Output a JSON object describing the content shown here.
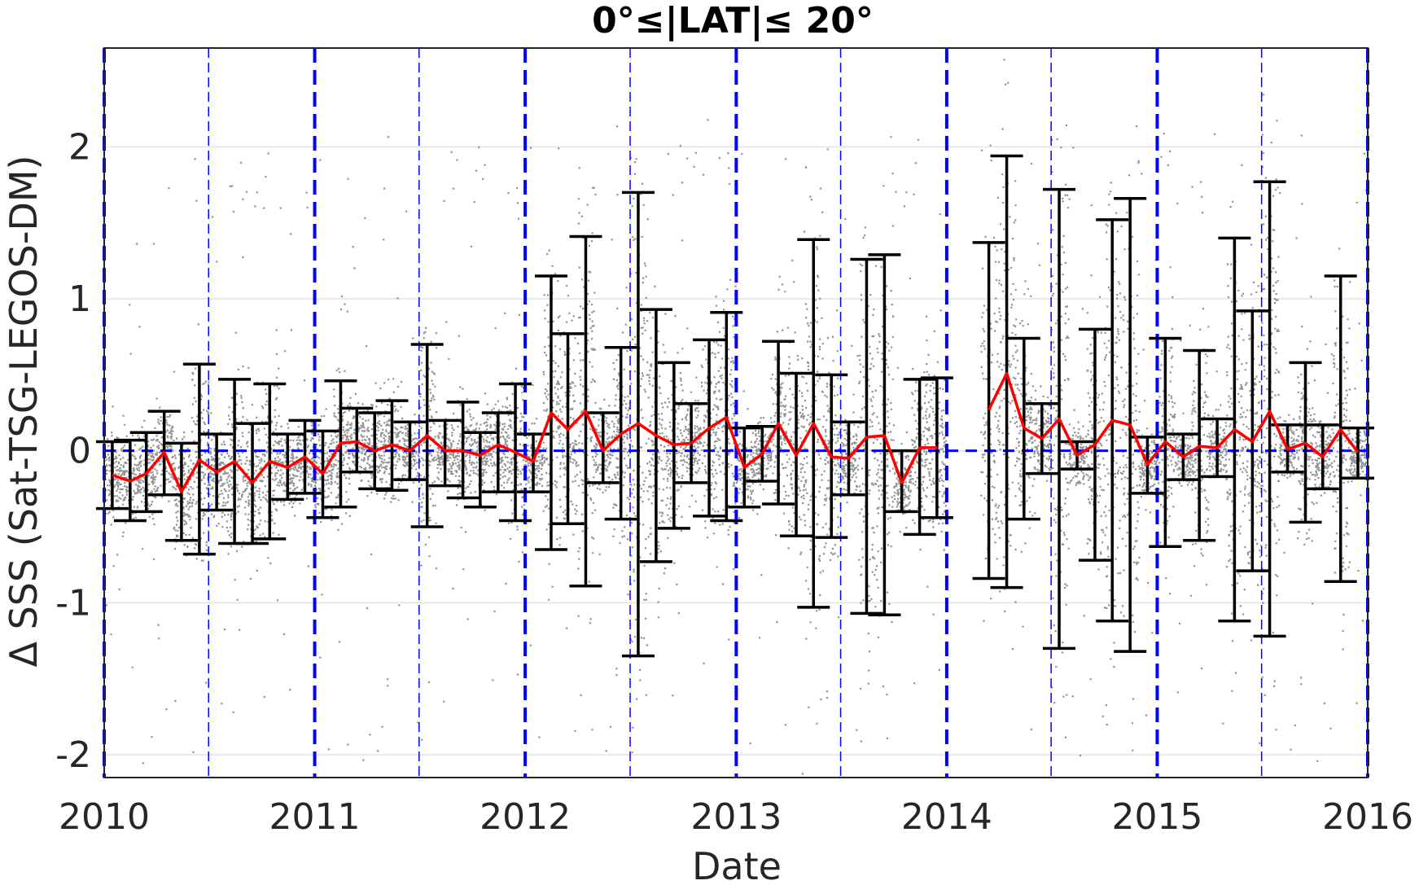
{
  "chart_data": {
    "type": "scatter",
    "title": "0°≤|LAT|≤ 20°",
    "xlabel": "Date",
    "ylabel": "Δ SSS (Sat-TSG-LEGOS-DM)",
    "xlim": [
      "2010-01-01",
      "2016-01-01"
    ],
    "ylim": [
      -2.15,
      2.65
    ],
    "xticks": [
      "2010",
      "2011",
      "2012",
      "2013",
      "2014",
      "2015",
      "2016"
    ],
    "yticks": [
      -2,
      -1,
      0,
      1,
      2
    ],
    "yticklabels": [
      "-2",
      "-1",
      "0",
      "1",
      "2"
    ],
    "grid": true,
    "colors": {
      "scatter": "#808080",
      "mean_line": "#ff0000",
      "error_bars": "#000000",
      "year_lines": "#0000ff",
      "zero_line": "#0000ff"
    },
    "reference_lines": {
      "zero": 0,
      "year_boundaries": [
        "2010-01-01",
        "2011-01-01",
        "2012-01-01",
        "2013-01-01",
        "2014-01-01",
        "2015-01-01",
        "2016-01-01"
      ],
      "mid_year": [
        "2010-07-01",
        "2011-07-01",
        "2012-07-01",
        "2013-07-01",
        "2014-07-01",
        "2015-07-01"
      ]
    },
    "monthly_stats": [
      {
        "date": "2010-01-15",
        "mean": -0.16,
        "low": -0.38,
        "high": 0.06
      },
      {
        "date": "2010-02-15",
        "mean": -0.2,
        "low": -0.46,
        "high": 0.07
      },
      {
        "date": "2010-03-15",
        "mean": -0.15,
        "low": -0.4,
        "high": 0.12
      },
      {
        "date": "2010-04-15",
        "mean": -0.01,
        "low": -0.29,
        "high": 0.26
      },
      {
        "date": "2010-05-15",
        "mean": -0.27,
        "low": -0.59,
        "high": 0.05
      },
      {
        "date": "2010-06-15",
        "mean": -0.06,
        "low": -0.68,
        "high": 0.57
      },
      {
        "date": "2010-07-15",
        "mean": -0.14,
        "low": -0.39,
        "high": 0.11
      },
      {
        "date": "2010-08-15",
        "mean": -0.07,
        "low": -0.61,
        "high": 0.47
      },
      {
        "date": "2010-09-15",
        "mean": -0.21,
        "low": -0.61,
        "high": 0.18
      },
      {
        "date": "2010-10-15",
        "mean": -0.07,
        "low": -0.58,
        "high": 0.44
      },
      {
        "date": "2010-11-15",
        "mean": -0.11,
        "low": -0.32,
        "high": 0.11
      },
      {
        "date": "2010-12-15",
        "mean": -0.04,
        "low": -0.28,
        "high": 0.2
      },
      {
        "date": "2011-01-15",
        "mean": -0.15,
        "low": -0.44,
        "high": 0.13
      },
      {
        "date": "2011-02-15",
        "mean": 0.05,
        "low": -0.37,
        "high": 0.46
      },
      {
        "date": "2011-03-15",
        "mean": 0.06,
        "low": -0.14,
        "high": 0.28
      },
      {
        "date": "2011-04-15",
        "mean": 0.0,
        "low": -0.25,
        "high": 0.25
      },
      {
        "date": "2011-05-15",
        "mean": 0.04,
        "low": -0.26,
        "high": 0.33
      },
      {
        "date": "2011-06-15",
        "mean": 0.0,
        "low": -0.19,
        "high": 0.19
      },
      {
        "date": "2011-07-15",
        "mean": 0.1,
        "low": -0.5,
        "high": 0.7
      },
      {
        "date": "2011-08-15",
        "mean": 0.0,
        "low": -0.23,
        "high": 0.2
      },
      {
        "date": "2011-09-15",
        "mean": 0.0,
        "low": -0.31,
        "high": 0.32
      },
      {
        "date": "2011-10-15",
        "mean": -0.03,
        "low": -0.37,
        "high": 0.12
      },
      {
        "date": "2011-11-15",
        "mean": 0.04,
        "low": -0.27,
        "high": 0.25
      },
      {
        "date": "2011-12-15",
        "mean": -0.01,
        "low": -0.46,
        "high": 0.44
      },
      {
        "date": "2012-01-15",
        "mean": -0.07,
        "low": -0.27,
        "high": 0.11
      },
      {
        "date": "2012-02-15",
        "mean": 0.25,
        "low": -0.65,
        "high": 1.15
      },
      {
        "date": "2012-03-15",
        "mean": 0.14,
        "low": -0.48,
        "high": 0.77
      },
      {
        "date": "2012-04-15",
        "mean": 0.26,
        "low": -0.89,
        "high": 1.41
      },
      {
        "date": "2012-05-15",
        "mean": 0.0,
        "low": -0.21,
        "high": 0.25
      },
      {
        "date": "2012-06-15",
        "mean": 0.11,
        "low": -0.45,
        "high": 0.68
      },
      {
        "date": "2012-07-15",
        "mean": 0.18,
        "low": -1.35,
        "high": 1.7
      },
      {
        "date": "2012-08-15",
        "mean": 0.1,
        "low": -0.73,
        "high": 0.93
      },
      {
        "date": "2012-09-15",
        "mean": 0.04,
        "low": -0.51,
        "high": 0.58
      },
      {
        "date": "2012-10-15",
        "mean": 0.05,
        "low": -0.21,
        "high": 0.31
      },
      {
        "date": "2012-11-15",
        "mean": 0.15,
        "low": -0.43,
        "high": 0.73
      },
      {
        "date": "2012-12-15",
        "mean": 0.22,
        "low": -0.46,
        "high": 0.91
      },
      {
        "date": "2013-01-15",
        "mean": -0.11,
        "low": -0.37,
        "high": 0.15
      },
      {
        "date": "2013-02-15",
        "mean": -0.02,
        "low": -0.2,
        "high": 0.16
      },
      {
        "date": "2013-03-15",
        "mean": 0.18,
        "low": -0.35,
        "high": 0.72
      },
      {
        "date": "2013-04-15",
        "mean": -0.03,
        "low": -0.56,
        "high": 0.51
      },
      {
        "date": "2013-05-15",
        "mean": 0.18,
        "low": -1.03,
        "high": 1.39
      },
      {
        "date": "2013-06-15",
        "mean": -0.04,
        "low": -0.57,
        "high": 0.5
      },
      {
        "date": "2013-07-15",
        "mean": -0.05,
        "low": -0.29,
        "high": 0.19
      },
      {
        "date": "2013-08-15",
        "mean": 0.09,
        "low": -1.07,
        "high": 1.26
      },
      {
        "date": "2013-09-15",
        "mean": 0.1,
        "low": -1.08,
        "high": 1.29
      },
      {
        "date": "2013-10-15",
        "mean": -0.21,
        "low": -0.4,
        "high": 0.0
      },
      {
        "date": "2013-11-15",
        "mean": 0.02,
        "low": -0.55,
        "high": 0.47
      },
      {
        "date": "2013-12-15",
        "mean": 0.02,
        "low": -0.44,
        "high": 0.48
      },
      {
        "date": "2014-03-15",
        "mean": 0.27,
        "low": -0.84,
        "high": 1.37
      },
      {
        "date": "2014-04-15",
        "mean": 0.51,
        "low": -0.9,
        "high": 1.94
      },
      {
        "date": "2014-05-15",
        "mean": 0.15,
        "low": -0.45,
        "high": 0.74
      },
      {
        "date": "2014-06-15",
        "mean": 0.08,
        "low": -0.15,
        "high": 0.31
      },
      {
        "date": "2014-07-15",
        "mean": 0.21,
        "low": -1.3,
        "high": 1.72
      },
      {
        "date": "2014-08-15",
        "mean": -0.03,
        "low": -0.12,
        "high": 0.06
      },
      {
        "date": "2014-09-15",
        "mean": 0.04,
        "low": -0.72,
        "high": 0.8
      },
      {
        "date": "2014-10-15",
        "mean": 0.2,
        "low": -1.12,
        "high": 1.52
      },
      {
        "date": "2014-11-15",
        "mean": 0.17,
        "low": -1.32,
        "high": 1.66
      },
      {
        "date": "2014-12-15",
        "mean": -0.09,
        "low": -0.28,
        "high": 0.09
      },
      {
        "date": "2015-01-15",
        "mean": 0.06,
        "low": -0.63,
        "high": 0.74
      },
      {
        "date": "2015-02-15",
        "mean": -0.04,
        "low": -0.19,
        "high": 0.11
      },
      {
        "date": "2015-03-15",
        "mean": 0.03,
        "low": -0.59,
        "high": 0.66
      },
      {
        "date": "2015-04-15",
        "mean": 0.02,
        "low": -0.17,
        "high": 0.21
      },
      {
        "date": "2015-05-15",
        "mean": 0.14,
        "low": -1.12,
        "high": 1.4
      },
      {
        "date": "2015-06-15",
        "mean": 0.06,
        "low": -0.79,
        "high": 0.92
      },
      {
        "date": "2015-07-15",
        "mean": 0.26,
        "low": -1.22,
        "high": 1.77
      },
      {
        "date": "2015-08-15",
        "mean": 0.01,
        "low": -0.14,
        "high": 0.17
      },
      {
        "date": "2015-09-15",
        "mean": 0.05,
        "low": -0.47,
        "high": 0.58
      },
      {
        "date": "2015-10-15",
        "mean": -0.04,
        "low": -0.25,
        "high": 0.17
      },
      {
        "date": "2015-11-15",
        "mean": 0.14,
        "low": -0.86,
        "high": 1.15
      },
      {
        "date": "2015-12-15",
        "mean": -0.01,
        "low": -0.18,
        "high": 0.15
      }
    ]
  }
}
